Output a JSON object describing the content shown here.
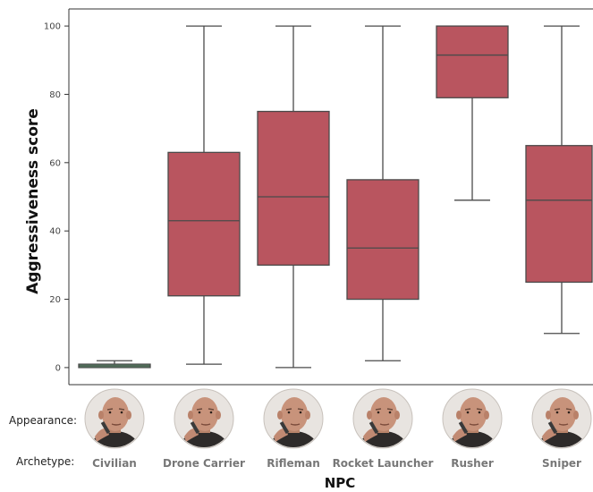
{
  "chart_data": {
    "type": "box",
    "xlabel": "NPC",
    "ylabel": "Aggressiveness score",
    "ylim": [
      -5,
      105
    ],
    "yticks": [
      0,
      20,
      40,
      60,
      80,
      100
    ],
    "grid": false,
    "categories": [
      "Civilian",
      "Drone Carrier",
      "Rifleman",
      "Rocket Launcher",
      "Rusher",
      "Sniper"
    ],
    "boxes": [
      {
        "min": 0,
        "q1": 0,
        "median": 0.5,
        "q3": 1,
        "max": 2
      },
      {
        "min": 1,
        "q1": 21,
        "median": 43,
        "q3": 63,
        "max": 100
      },
      {
        "min": 0,
        "q1": 30,
        "median": 50,
        "q3": 75,
        "max": 100
      },
      {
        "min": 2,
        "q1": 20,
        "median": 35,
        "q3": 55,
        "max": 100
      },
      {
        "min": 49,
        "q1": 79,
        "median": 91.5,
        "q3": 100,
        "max": 100
      },
      {
        "min": 10,
        "q1": 25,
        "median": 49,
        "q3": 65,
        "max": 100
      }
    ],
    "box_colors": [
      "#5da071",
      "#b9555f",
      "#b9555f",
      "#b9555f",
      "#b9555f",
      "#b9555f"
    ],
    "row_labels": {
      "appearance": "Appearance:",
      "archetype": "Archetype:"
    }
  }
}
